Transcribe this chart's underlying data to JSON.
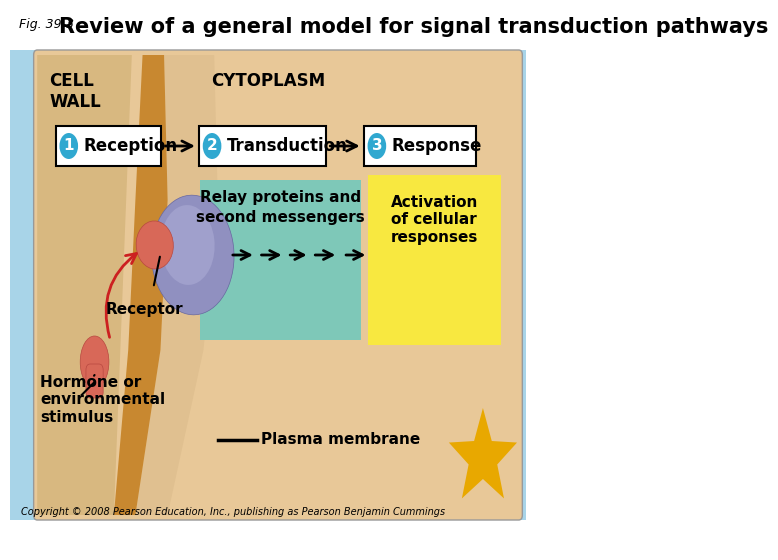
{
  "title_fig": "Fig. 39-3",
  "title_main": "Review of a general model for signal transduction pathways",
  "cell_wall_label": "CELL\nWALL",
  "cytoplasm_label": "CYTOPLASM",
  "step1_label": "Reception",
  "step2_label": "Transduction",
  "step3_label": "Response",
  "relay_text_line1": "Relay proteins and",
  "relay_text_line2": "second messengers",
  "activation_text": "Activation\nof cellular\nresponses",
  "receptor_label": "Receptor",
  "hormone_label": "Hormone or\nenvironmental\nstimulus",
  "plasma_label": "Plasma membrane",
  "copyright": "Copyright © 2008 Pearson Education, Inc., publishing as Pearson Benjamin Cummings",
  "bg_white": "#FFFFFF",
  "bg_blue": "#A8D4E8",
  "bg_tan": "#E8C898",
  "cell_wall_stripe_light": "#D4A060",
  "cell_wall_stripe_dark": "#C88830",
  "teal_box": "#7EC8B8",
  "yellow_box": "#F8E840",
  "step_box_fill": "#FFFFFF",
  "step_circle_color": "#30A8D0",
  "circle_number_color": "#FFFFFF",
  "receptor_body_color": "#8888BB",
  "receptor_body_color2": "#7070AA",
  "binding_color": "#E07060",
  "hormone_color": "#E07060",
  "star_color": "#E8A800",
  "arrow_color": "#000000",
  "red_arrow_color": "#CC2020",
  "title_fontsize": 15,
  "label_fontsize": 11,
  "step_fontsize": 12,
  "small_fontsize": 7
}
